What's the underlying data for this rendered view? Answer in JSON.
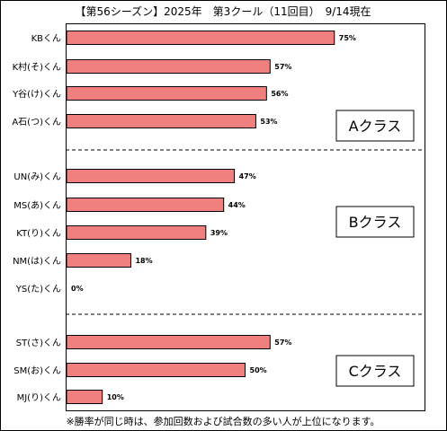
{
  "chart_data": {
    "type": "bar",
    "orientation": "horizontal",
    "title": "【第56シーズン】2025年　第3クール（11回目）　9/14現在",
    "categories": [
      "KBくん",
      "K村(そ)くん",
      "Y谷(け)くん",
      "A石(つ)くん",
      "UN(み)くん",
      "MS(あ)くん",
      "KT(り)くん",
      "NM(は)くん",
      "YS(た)くん",
      "ST(さ)くん",
      "SM(お)くん",
      "MJ(り)くん"
    ],
    "values": [
      75,
      57,
      56,
      53,
      47,
      44,
      39,
      18,
      0,
      57,
      50,
      10
    ],
    "value_labels": [
      "75%",
      "57%",
      "56%",
      "53%",
      "47%",
      "44%",
      "39%",
      "18%",
      "0%",
      "57%",
      "50%",
      "10%"
    ],
    "xlim": [
      0,
      100
    ],
    "bar_color": "#f08080",
    "grid": false,
    "groups": [
      {
        "label": "Aクラス",
        "members": [
          "KBくん",
          "K村(そ)くん",
          "Y谷(け)くん",
          "A石(つ)くん"
        ]
      },
      {
        "label": "Bクラス",
        "members": [
          "UN(み)くん",
          "MS(あ)くん",
          "KT(り)くん",
          "NM(は)くん",
          "YS(た)くん"
        ]
      },
      {
        "label": "Cクラス",
        "members": [
          "ST(さ)くん",
          "SM(お)くん",
          "MJ(り)くん"
        ]
      }
    ],
    "footnote": "※勝率が同じ時は、参加回数および試合数の多い人が上位になります。"
  }
}
